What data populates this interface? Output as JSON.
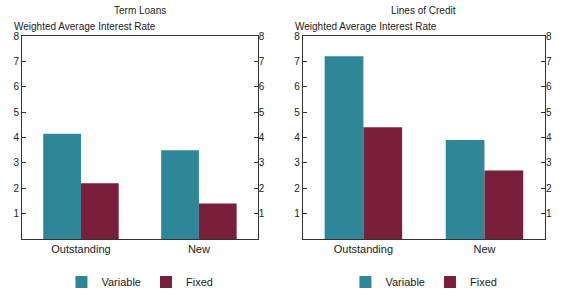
{
  "chart_data": [
    {
      "type": "bar",
      "title": "Term Loans",
      "y_label": "Weighted Average Interest Rate",
      "categories": [
        "Outstanding",
        "New"
      ],
      "series": [
        {
          "name": "Variable",
          "color": "#2e8799",
          "values": [
            4.15,
            3.5
          ]
        },
        {
          "name": "Fixed",
          "color": "#7a1f3b",
          "values": [
            2.2,
            1.4
          ]
        }
      ],
      "ylim": [
        0,
        8
      ],
      "yticks": [
        1,
        2,
        3,
        4,
        5,
        6,
        7,
        8
      ],
      "grid": false,
      "legend": "bottom"
    },
    {
      "type": "bar",
      "title": "Lines of Credit",
      "y_label": "Weighted Average Interest Rate",
      "categories": [
        "Outstanding",
        "New"
      ],
      "series": [
        {
          "name": "Variable",
          "color": "#2e8799",
          "values": [
            7.2,
            3.9
          ]
        },
        {
          "name": "Fixed",
          "color": "#7a1f3b",
          "values": [
            4.4,
            2.7
          ]
        }
      ],
      "ylim": [
        0,
        8
      ],
      "yticks": [
        1,
        2,
        3,
        4,
        5,
        6,
        7,
        8
      ],
      "grid": false,
      "legend": "bottom"
    }
  ]
}
